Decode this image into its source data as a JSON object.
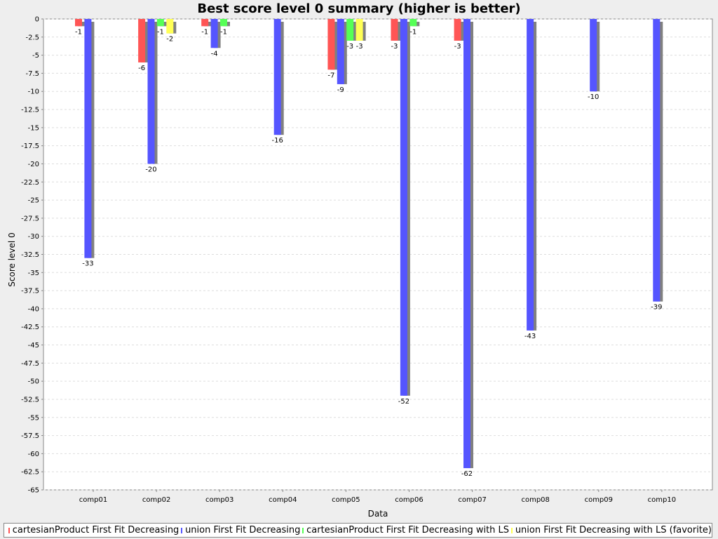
{
  "chart_data": {
    "type": "bar",
    "title": "Best score level 0 summary (higher is better)",
    "x_label": "Data",
    "y_label": "Score level 0",
    "categories": [
      "comp01",
      "comp02",
      "comp03",
      "comp04",
      "comp05",
      "comp06",
      "comp07",
      "comp08",
      "comp09",
      "comp10"
    ],
    "series": [
      {
        "name": "cartesianProduct First Fit Decreasing",
        "color": "#ff5555",
        "values": [
          -1,
          -6,
          -1,
          null,
          -7,
          -3,
          -3,
          null,
          null,
          null
        ]
      },
      {
        "name": "union First Fit Decreasing",
        "color": "#5555ff",
        "values": [
          -33,
          -20,
          -4,
          -16,
          -9,
          -52,
          -62,
          -43,
          -10,
          -39
        ]
      },
      {
        "name": "cartesianProduct First Fit Decreasing with LS",
        "color": "#55ff55",
        "values": [
          null,
          -1,
          -1,
          null,
          -3,
          -1,
          null,
          null,
          null,
          null
        ]
      },
      {
        "name": "union First Fit Decreasing with LS (favorite)",
        "color": "#ffff55",
        "values": [
          null,
          -2,
          null,
          null,
          -3,
          null,
          null,
          null,
          null,
          null
        ]
      }
    ],
    "ylim": [
      -65,
      0
    ],
    "yticks": [
      0,
      -2.5,
      -5,
      -7.5,
      -10,
      -12.5,
      -15,
      -17.5,
      -20,
      -22.5,
      -25,
      -27.5,
      -30,
      -32.5,
      -35,
      -37.5,
      -40,
      -42.5,
      -45,
      -47.5,
      -50,
      -52.5,
      -55,
      -57.5,
      -60,
      -62.5,
      -65
    ],
    "grid": true
  }
}
